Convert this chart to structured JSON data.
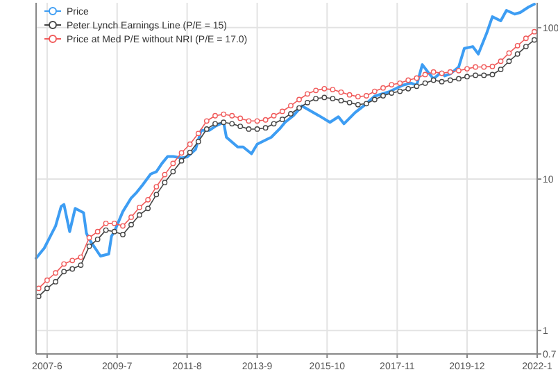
{
  "chart_data": {
    "type": "line",
    "log": "y",
    "grid": true,
    "legend": "top left",
    "xlim": [
      "2007-02",
      "2022-01"
    ],
    "xticks": [
      {
        "value": "2007-06",
        "label": "2007-6"
      },
      {
        "value": "2009-07",
        "label": "2009-7"
      },
      {
        "value": "2011-08",
        "label": "2011-8"
      },
      {
        "value": "2013-09",
        "label": "2013-9"
      },
      {
        "value": "2015-10",
        "label": "2015-10"
      },
      {
        "value": "2017-11",
        "label": "2017-11"
      },
      {
        "value": "2019-12",
        "label": "2019-12"
      },
      {
        "value": "2022-01",
        "label": "2022-1"
      }
    ],
    "ylim": [
      0.7,
      146
    ],
    "yticks": [
      0.7,
      1,
      10,
      100
    ],
    "series": [
      {
        "name": "Price",
        "color": "#3d9df3",
        "marker": "none",
        "x": [
          "2007-02",
          "2007-05",
          "2007-09",
          "2007-11",
          "2007-12",
          "2008-02",
          "2008-04",
          "2008-07",
          "2008-08",
          "2008-09",
          "2009-01",
          "2009-04",
          "2009-05",
          "2009-06",
          "2009-09",
          "2009-12",
          "2010-02",
          "2010-04",
          "2010-07",
          "2010-09",
          "2010-11",
          "2011-01",
          "2011-03",
          "2011-06",
          "2011-08",
          "2011-11",
          "2012-01",
          "2012-04",
          "2012-06",
          "2012-09",
          "2012-10",
          "2013-02",
          "2013-04",
          "2013-07",
          "2013-09",
          "2013-12",
          "2014-02",
          "2014-05",
          "2014-07",
          "2014-10",
          "2015-01",
          "2015-07",
          "2015-11",
          "2016-02",
          "2016-04",
          "2016-08",
          "2016-11",
          "2017-03",
          "2017-08",
          "2018-01",
          "2018-04",
          "2018-06",
          "2018-08",
          "2018-10",
          "2018-12",
          "2019-03",
          "2019-04",
          "2019-06",
          "2019-09",
          "2019-11",
          "2020-02",
          "2020-04",
          "2020-07",
          "2020-09",
          "2020-12",
          "2021-02",
          "2021-05",
          "2021-07",
          "2021-10",
          "2021-12"
        ],
        "values": [
          3.0,
          3.5,
          4.9,
          6.6,
          6.8,
          4.5,
          6.4,
          6.0,
          4.4,
          4.0,
          3.1,
          3.2,
          4.2,
          4.5,
          6.1,
          7.5,
          8.2,
          9.1,
          10.8,
          11.2,
          12.7,
          14.1,
          14.1,
          13.8,
          14,
          15.7,
          21,
          21,
          22.3,
          23.7,
          18.9,
          16.3,
          16.3,
          14.7,
          17,
          18.1,
          18.9,
          21.4,
          23.7,
          26.3,
          30.4,
          26.3,
          23.7,
          25.8,
          23.2,
          27.5,
          30.4,
          35.3,
          37.6,
          41.7,
          43,
          41.7,
          57,
          51,
          46,
          51,
          48,
          49.5,
          55,
          73,
          75,
          67,
          92,
          118,
          111,
          130,
          123,
          126,
          137,
          143
        ]
      },
      {
        "name": "Peter Lynch Earnings Line (P/E = 15)",
        "color": "#444444",
        "marker": "circle",
        "x": [
          "2007-03",
          "2007-06",
          "2007-09",
          "2007-12",
          "2008-03",
          "2008-06",
          "2008-09",
          "2008-12",
          "2009-03",
          "2009-06",
          "2009-09",
          "2009-12",
          "2010-03",
          "2010-06",
          "2010-09",
          "2010-12",
          "2011-03",
          "2011-06",
          "2011-09",
          "2011-12",
          "2012-03",
          "2012-06",
          "2012-09",
          "2012-12",
          "2013-03",
          "2013-06",
          "2013-09",
          "2013-12",
          "2014-03",
          "2014-06",
          "2014-09",
          "2014-12",
          "2015-03",
          "2015-06",
          "2015-09",
          "2015-12",
          "2016-03",
          "2016-06",
          "2016-09",
          "2016-12",
          "2017-03",
          "2017-06",
          "2017-09",
          "2017-12",
          "2018-03",
          "2018-06",
          "2018-09",
          "2018-12",
          "2019-03",
          "2019-06",
          "2019-09",
          "2019-12",
          "2020-03",
          "2020-06",
          "2020-09",
          "2020-12",
          "2021-03",
          "2021-06",
          "2021-09",
          "2021-12"
        ],
        "values": [
          1.68,
          1.9,
          2.1,
          2.45,
          2.55,
          2.7,
          3.6,
          4.0,
          4.6,
          4.5,
          4.3,
          5.0,
          5.8,
          6.4,
          7.9,
          9.5,
          11.2,
          13.2,
          15,
          17.7,
          21.4,
          23.2,
          23.7,
          23.2,
          22.3,
          21.4,
          21.4,
          21.8,
          23.2,
          24.8,
          27,
          29.5,
          32,
          34,
          34.6,
          34,
          33,
          32,
          31,
          31.5,
          33.5,
          35.5,
          37,
          38,
          39.5,
          41,
          43,
          45,
          44,
          45,
          46,
          47.5,
          48.5,
          48.5,
          49,
          53,
          60,
          67,
          75,
          83
        ]
      },
      {
        "name": "Price at Med P/E without NRI (P/E = 17.0)",
        "color": "#f05a5a",
        "marker": "circle",
        "x": [
          "2007-03",
          "2007-06",
          "2007-09",
          "2007-12",
          "2008-03",
          "2008-06",
          "2008-09",
          "2008-12",
          "2009-03",
          "2009-06",
          "2009-09",
          "2009-12",
          "2010-03",
          "2010-06",
          "2010-09",
          "2010-12",
          "2011-03",
          "2011-06",
          "2011-09",
          "2011-12",
          "2012-03",
          "2012-06",
          "2012-09",
          "2012-12",
          "2013-03",
          "2013-06",
          "2013-09",
          "2013-12",
          "2014-03",
          "2014-06",
          "2014-09",
          "2014-12",
          "2015-03",
          "2015-06",
          "2015-09",
          "2015-12",
          "2016-03",
          "2016-06",
          "2016-09",
          "2016-12",
          "2017-03",
          "2017-06",
          "2017-09",
          "2017-12",
          "2018-03",
          "2018-06",
          "2018-09",
          "2018-12",
          "2019-03",
          "2019-06",
          "2019-09",
          "2019-12",
          "2020-03",
          "2020-06",
          "2020-09",
          "2020-12",
          "2021-03",
          "2021-06",
          "2021-09",
          "2021-12"
        ],
        "values": [
          1.9,
          2.15,
          2.4,
          2.75,
          2.9,
          3.05,
          4.1,
          4.5,
          5.1,
          5.1,
          4.9,
          5.6,
          6.5,
          7.3,
          8.9,
          10.7,
          12.7,
          14.9,
          17,
          20,
          24.2,
          26.2,
          26.8,
          26.2,
          25.2,
          24.2,
          24.2,
          24.6,
          26.2,
          28,
          30.5,
          33.5,
          36.5,
          38.5,
          39.5,
          39,
          37.5,
          36,
          35,
          35.5,
          38,
          40,
          42,
          43,
          45,
          46.5,
          49,
          51,
          50,
          51,
          52,
          53.5,
          55,
          55,
          55.5,
          60,
          68,
          76,
          85,
          94
        ]
      }
    ]
  }
}
